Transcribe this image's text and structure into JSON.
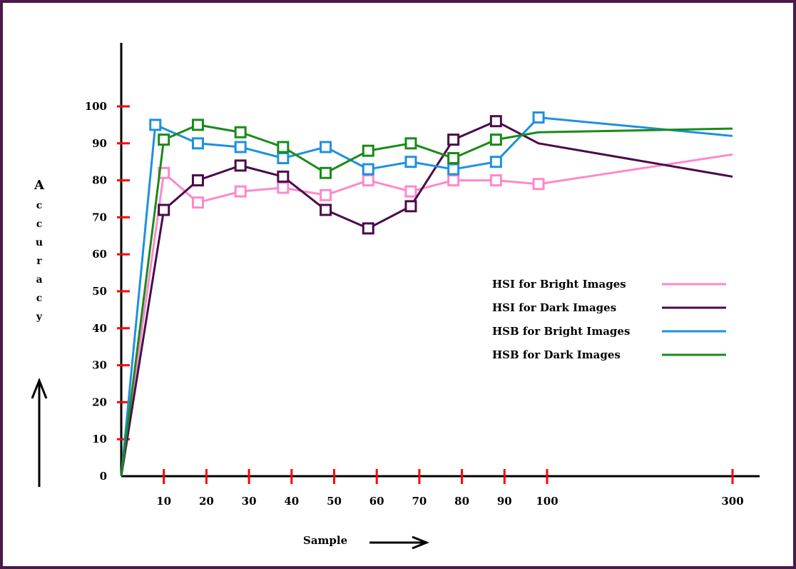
{
  "chart_data": {
    "type": "line",
    "title": "",
    "xlabel": "Sample",
    "ylabel": "Accuracy",
    "x_ticks": [
      {
        "label": "10",
        "value": 10
      },
      {
        "label": "20",
        "value": 20
      },
      {
        "label": "30",
        "value": 30
      },
      {
        "label": "40",
        "value": 40
      },
      {
        "label": "50",
        "value": 50
      },
      {
        "label": "60",
        "value": 60
      },
      {
        "label": "70",
        "value": 70
      },
      {
        "label": "80",
        "value": 80
      },
      {
        "label": "90",
        "value": 90
      },
      {
        "label": "100",
        "value": 100
      },
      {
        "label": "300",
        "value": 300
      }
    ],
    "y_ticks": [
      "0",
      "10",
      "20",
      "30",
      "40",
      "50",
      "60",
      "70",
      "80",
      "90",
      "100"
    ],
    "ylim": [
      0,
      100
    ],
    "grid": false,
    "legend_position": "right",
    "series": [
      {
        "name": "HSI for Bright Images",
        "color": "#ff88cc",
        "x": [
          0,
          10,
          18,
          28,
          38,
          48,
          58,
          68,
          78,
          88,
          98,
          300
        ],
        "y": [
          0,
          82,
          74,
          77,
          78,
          76,
          80,
          77,
          80,
          80,
          79,
          87
        ],
        "markers": [
          false,
          true,
          true,
          true,
          true,
          true,
          true,
          true,
          true,
          true,
          true,
          false
        ]
      },
      {
        "name": "HSI for Dark Images",
        "color": "#4b0a4b",
        "x": [
          0,
          10,
          18,
          28,
          38,
          48,
          58,
          68,
          78,
          88,
          98,
          300
        ],
        "y": [
          0,
          72,
          80,
          84,
          81,
          72,
          67,
          73,
          91,
          96,
          90,
          81
        ],
        "markers": [
          false,
          true,
          true,
          true,
          true,
          true,
          true,
          true,
          true,
          true,
          false,
          false
        ]
      },
      {
        "name": "HSB for Bright Images",
        "color": "#1e90e0",
        "x": [
          0,
          8,
          18,
          28,
          38,
          48,
          58,
          68,
          78,
          88,
          98,
          300
        ],
        "y": [
          0,
          95,
          90,
          89,
          86,
          89,
          83,
          85,
          83,
          85,
          97,
          92
        ],
        "markers": [
          false,
          true,
          true,
          true,
          true,
          true,
          true,
          true,
          true,
          true,
          true,
          false
        ]
      },
      {
        "name": "HSB for Dark Images",
        "color": "#1a8a1a",
        "x": [
          0,
          10,
          18,
          28,
          38,
          48,
          58,
          68,
          78,
          88,
          98,
          300
        ],
        "y": [
          0,
          91,
          95,
          93,
          89,
          82,
          88,
          90,
          86,
          91,
          93,
          94
        ],
        "markers": [
          false,
          true,
          true,
          true,
          true,
          true,
          true,
          true,
          true,
          true,
          false,
          false
        ]
      }
    ]
  }
}
